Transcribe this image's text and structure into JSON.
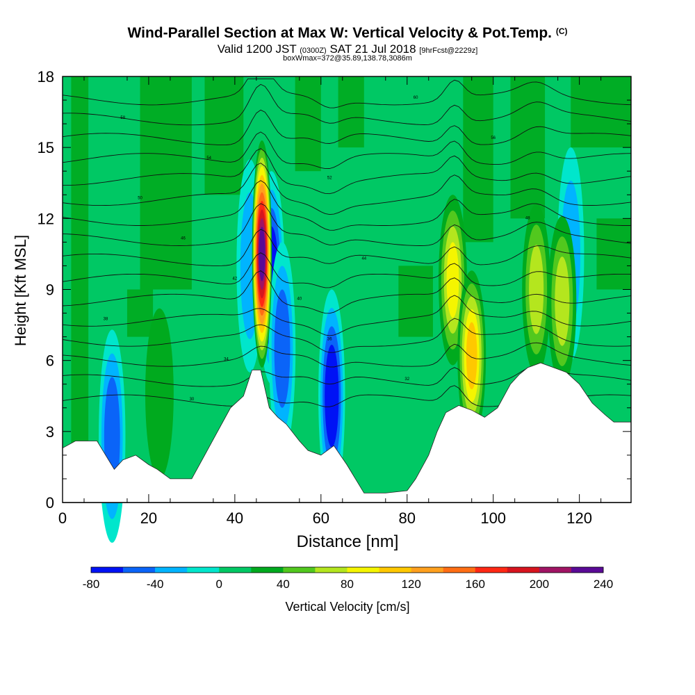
{
  "chart_data": {
    "type": "heatmap",
    "title": "Wind-Parallel Section at Max W: Vertical Velocity & Pot.Temp.",
    "title_mark": "(C)",
    "subtitle_a": "Valid 1200 JST",
    "subtitle_b": "(0300Z)",
    "subtitle_c": "SAT 21 Jul 2018",
    "subtitle_d": "[9hrFcst@2229z]",
    "subtitle_2": "boxWmax=372@35.89,138.78,3086m",
    "xlabel": "Distance [nm]",
    "ylabel": "Height [Kft MSL]",
    "xlim": [
      0,
      132
    ],
    "ylim": [
      0,
      18
    ],
    "x_ticks": [
      "0",
      "20",
      "40",
      "60",
      "80",
      "100",
      "120"
    ],
    "x_tick_values": [
      0,
      20,
      40,
      60,
      80,
      100,
      120
    ],
    "y_ticks": [
      "0",
      "3",
      "6",
      "9",
      "12",
      "15",
      "18"
    ],
    "y_tick_values": [
      0,
      3,
      6,
      9,
      12,
      15,
      18
    ],
    "colorbar": {
      "label": "Vertical Velocity [cm/s]",
      "min": -80,
      "max": 240,
      "tick_labels": [
        "-80",
        "-40",
        "0",
        "40",
        "80",
        "120",
        "160",
        "200",
        "240"
      ],
      "tick_values": [
        -80,
        -40,
        0,
        40,
        80,
        120,
        160,
        200,
        240
      ],
      "colors": [
        "#0012f5",
        "#0a64f8",
        "#00b4ff",
        "#00e6cc",
        "#00c864",
        "#00aa1e",
        "#52c81e",
        "#b4e61e",
        "#f5f500",
        "#ffc800",
        "#ffa01e",
        "#ff6e14",
        "#ff2814",
        "#d7141e",
        "#a01464",
        "#5a0a96"
      ]
    },
    "terrain_height_kft": [
      [
        0,
        2.3
      ],
      [
        3,
        2.6
      ],
      [
        8,
        2.6
      ],
      [
        10,
        2.0
      ],
      [
        12,
        1.4
      ],
      [
        14,
        1.8
      ],
      [
        17,
        2.0
      ],
      [
        20,
        1.6
      ],
      [
        22,
        1.4
      ],
      [
        25,
        1.0
      ],
      [
        30,
        1.0
      ],
      [
        33,
        2.0
      ],
      [
        36,
        3.0
      ],
      [
        39,
        4.0
      ],
      [
        42,
        4.5
      ],
      [
        44,
        5.6
      ],
      [
        46,
        5.6
      ],
      [
        48,
        4.0
      ],
      [
        50,
        3.6
      ],
      [
        52,
        3.3
      ],
      [
        55,
        2.6
      ],
      [
        57,
        2.2
      ],
      [
        60,
        2.0
      ],
      [
        63,
        2.4
      ],
      [
        66,
        1.6
      ],
      [
        68,
        1.0
      ],
      [
        70,
        0.4
      ],
      [
        75,
        0.4
      ],
      [
        80,
        0.5
      ],
      [
        82,
        1.0
      ],
      [
        85,
        2.0
      ],
      [
        87,
        3.0
      ],
      [
        89,
        3.8
      ],
      [
        92,
        4.1
      ],
      [
        95,
        3.9
      ],
      [
        98,
        3.6
      ],
      [
        101,
        4.0
      ],
      [
        104,
        5.0
      ],
      [
        106,
        5.4
      ],
      [
        108,
        5.7
      ],
      [
        111,
        5.9
      ],
      [
        114,
        5.7
      ],
      [
        117,
        5.5
      ],
      [
        120,
        5.0
      ],
      [
        123,
        4.2
      ],
      [
        126,
        3.7
      ],
      [
        128,
        3.4
      ],
      [
        132,
        3.4
      ]
    ],
    "updrafts_cm_s": [
      {
        "x": 46.3,
        "y": 10.5,
        "peak": 230
      },
      {
        "x": 90.6,
        "y": 9.4,
        "peak": 100
      },
      {
        "x": 95.0,
        "y": 6.2,
        "peak": 120
      },
      {
        "x": 110.0,
        "y": 9.0,
        "peak": 80
      },
      {
        "x": 116.0,
        "y": 8.5,
        "peak": 80
      },
      {
        "x": 22.5,
        "y": 4.6,
        "peak": 30
      }
    ],
    "downdrafts_cm_s": [
      {
        "x": 48.5,
        "y": 9.5,
        "peak": -70
      },
      {
        "x": 51.0,
        "y": 6.5,
        "peak": -60
      },
      {
        "x": 62.5,
        "y": 4.5,
        "peak": -70
      },
      {
        "x": 11.5,
        "y": 2.8,
        "peak": -65
      },
      {
        "x": 43.5,
        "y": 10.0,
        "peak": -45
      },
      {
        "x": 118.0,
        "y": 10.5,
        "peak": -30
      }
    ],
    "theta_contour_labels": [
      "30",
      "32",
      "34",
      "36",
      "38",
      "40",
      "42",
      "44",
      "46",
      "48",
      "50",
      "52",
      "54",
      "56",
      "58",
      "60"
    ],
    "grid": false,
    "legend": "colorbar-bottom"
  }
}
